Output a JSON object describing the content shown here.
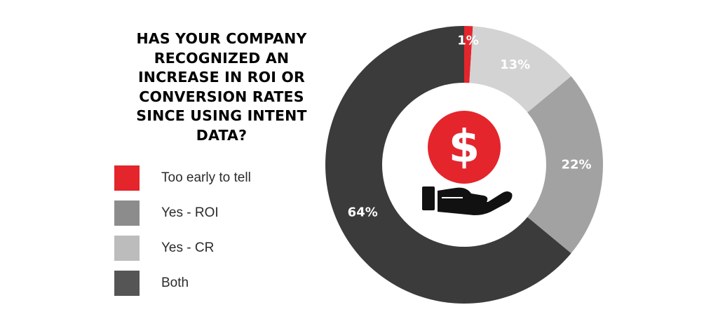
{
  "title": "HAS YOUR COMPANY RECOGNIZED AN INCREASE IN ROI OR CONVERSION RATES SINCE USING INTENT DATA?",
  "legend": [
    {
      "label": "Too early to tell",
      "color": "#e4252c"
    },
    {
      "label": "Yes - ROI",
      "color": "#8c8c8c"
    },
    {
      "label": "Yes - CR",
      "color": "#bcbcbc"
    },
    {
      "label": "Both",
      "color": "#555555"
    }
  ],
  "center_icon": {
    "name": "dollar-coin-hand-icon",
    "coin_color": "#e4252c",
    "symbol": "$"
  },
  "chart_data": {
    "type": "pie",
    "donut": true,
    "title": "HAS YOUR COMPANY RECOGNIZED AN INCREASE IN ROI OR CONVERSION RATES SINCE USING INTENT DATA?",
    "legend_position": "left",
    "slices": [
      {
        "label": "Too early to tell",
        "value": 1,
        "display": "1%",
        "color": "#e4252c",
        "text_color": "#ffffff"
      },
      {
        "label": "Yes - CR",
        "value": 13,
        "display": "13%",
        "color": "#d3d3d3",
        "text_color": "#ffffff"
      },
      {
        "label": "Yes - ROI",
        "value": 22,
        "display": "22%",
        "color": "#a2a2a2",
        "text_color": "#ffffff"
      },
      {
        "label": "Both",
        "value": 64,
        "display": "64%",
        "color": "#3b3b3b",
        "text_color": "#ffffff"
      }
    ]
  }
}
